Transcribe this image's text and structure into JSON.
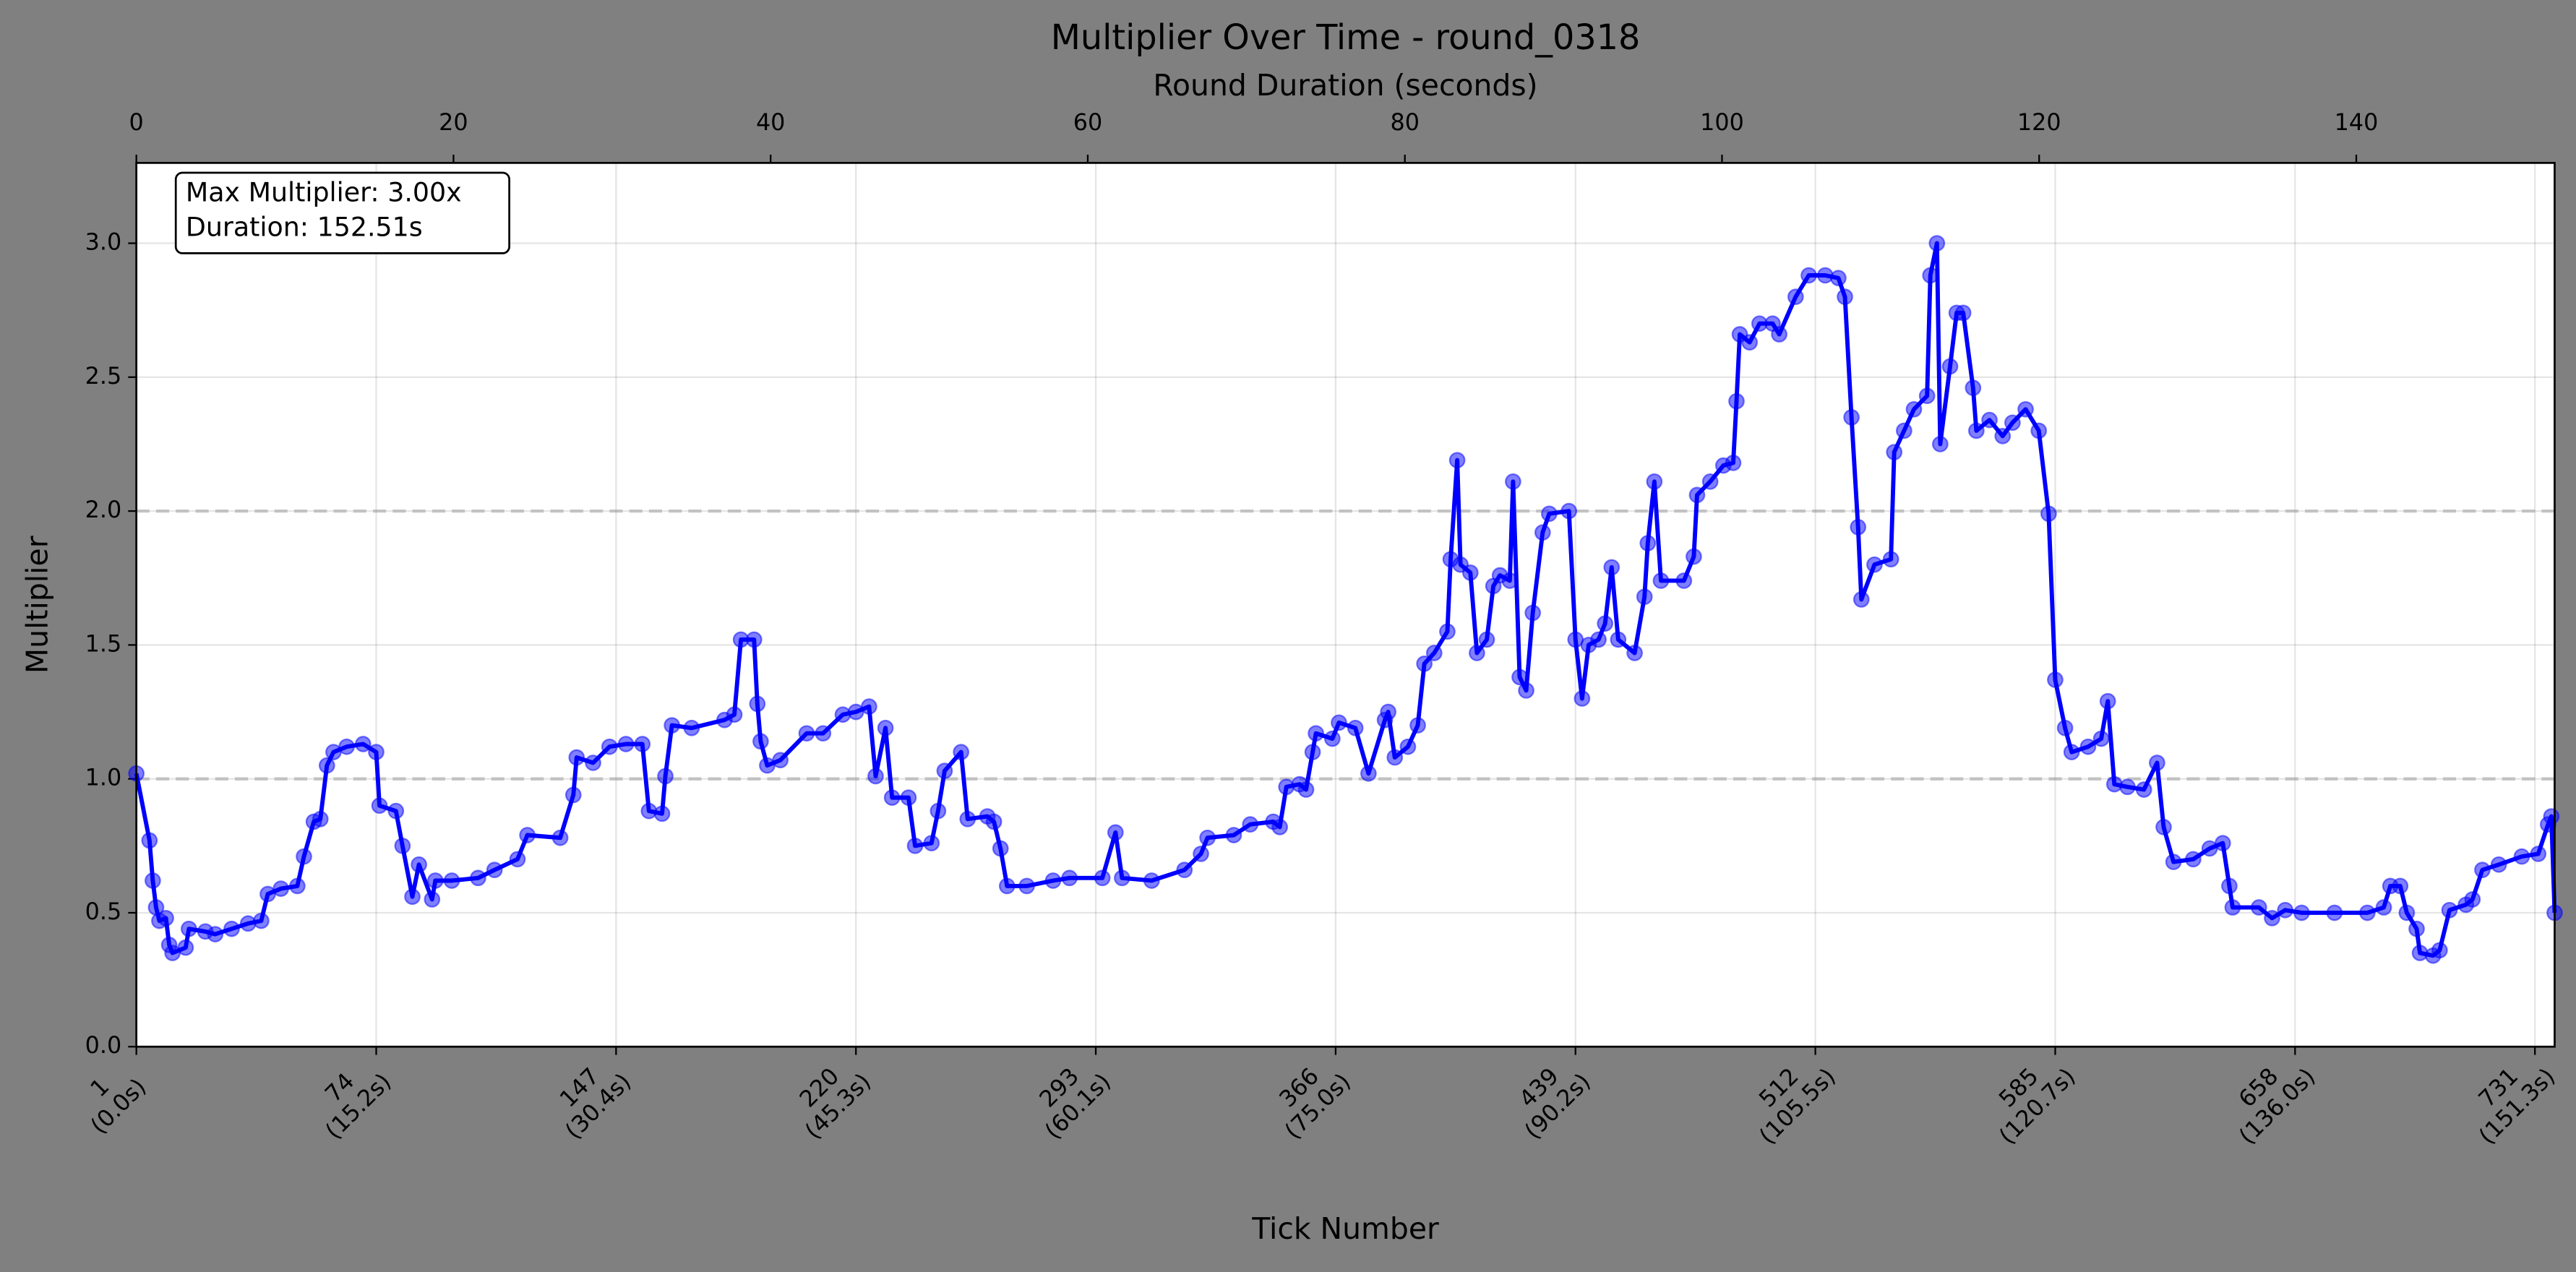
{
  "chart_data": {
    "type": "line",
    "title": "Multiplier Over Time - round_0318",
    "xlabel": "Tick Number",
    "ylabel": "Multiplier",
    "x2label": "Round Duration (seconds)",
    "annotation": [
      "Max Multiplier: 3.00x",
      "Duration: 152.51s"
    ],
    "color": "#0000ff",
    "grid": true,
    "reference_lines": [
      1,
      2
    ],
    "xlim": [
      1,
      737
    ],
    "ylim": [
      0,
      3.3
    ],
    "x2lim": [
      0,
      152.51
    ],
    "x2ticks": [
      0,
      20,
      40,
      60,
      80,
      100,
      120,
      140
    ],
    "yticks": [
      {
        "value": 0,
        "label": "0.0"
      },
      0.5,
      {
        "value": 1,
        "label": "1.0"
      },
      1.5,
      {
        "value": 2,
        "label": "2.0"
      },
      2.5,
      {
        "value": 3,
        "label": "3.0"
      }
    ],
    "xticks": [
      {
        "value": 1,
        "label": "1",
        "time_label": "(0.0s)"
      },
      {
        "value": 74,
        "label": "74",
        "time_label": "(15.2s)"
      },
      {
        "value": 147,
        "label": "147",
        "time_label": "(30.4s)"
      },
      {
        "value": 220,
        "label": "220",
        "time_label": "(45.3s)"
      },
      {
        "value": 293,
        "label": "293",
        "time_label": "(60.1s)"
      },
      {
        "value": 366,
        "label": "366",
        "time_label": "(75.0s)"
      },
      {
        "value": 439,
        "label": "439",
        "time_label": "(90.2s)"
      },
      {
        "value": 512,
        "label": "512",
        "time_label": "(105.5s)"
      },
      {
        "value": 585,
        "label": "585",
        "time_label": "(120.7s)"
      },
      {
        "value": 658,
        "label": "658",
        "time_label": "(136.0s)"
      },
      {
        "value": 731,
        "label": "731",
        "time_label": "(151.3s)"
      }
    ],
    "x": [
      1,
      5,
      6,
      7,
      8,
      10,
      11,
      12,
      16,
      17,
      22,
      25,
      30,
      35,
      39,
      41,
      45,
      50,
      52,
      55,
      57,
      59,
      61,
      65,
      70,
      74,
      75,
      80,
      82,
      85,
      87,
      91,
      92,
      97,
      105,
      110,
      117,
      120,
      130,
      134,
      135,
      140,
      145,
      150,
      155,
      157,
      161,
      162,
      164,
      170,
      180,
      183,
      185,
      189,
      190,
      191,
      193,
      197,
      205,
      210,
      216,
      220,
      224,
      226,
      229,
      231,
      236,
      238,
      243,
      245,
      247,
      252,
      254,
      260,
      262,
      264,
      266,
      272,
      280,
      285,
      295,
      299,
      301,
      310,
      320,
      325,
      327,
      335,
      340,
      347,
      349,
      351,
      355,
      357,
      359,
      360,
      365,
      367,
      372,
      376,
      381,
      382,
      384,
      388,
      391,
      393,
      396,
      400,
      401,
      403,
      404,
      407,
      409,
      412,
      414,
      416,
      419,
      420,
      422,
      424,
      426,
      429,
      431,
      437,
      439,
      441,
      443,
      446,
      448,
      450,
      452,
      457,
      460,
      461,
      463,
      465,
      472,
      475,
      476,
      480,
      484,
      487,
      488,
      489,
      492,
      495,
      499,
      501,
      506,
      510,
      515,
      519,
      521,
      523,
      525,
      526,
      530,
      535,
      536,
      539,
      542,
      546,
      547,
      549,
      550,
      553,
      555,
      557,
      560,
      561,
      565,
      569,
      572,
      576,
      580,
      583,
      585,
      588,
      590,
      595,
      599,
      601,
      603,
      607,
      612,
      616,
      618,
      621,
      627,
      632,
      636,
      638,
      639,
      647,
      651,
      655,
      660,
      670,
      680,
      685,
      687,
      690,
      692,
      695,
      696,
      700,
      702,
      705,
      710,
      712,
      715,
      720,
      727,
      732,
      735,
      736,
      737
    ],
    "values": [
      1.02,
      0.77,
      0.62,
      0.52,
      0.47,
      0.48,
      0.38,
      0.35,
      0.37,
      0.44,
      0.43,
      0.42,
      0.44,
      0.46,
      0.47,
      0.57,
      0.59,
      0.6,
      0.71,
      0.84,
      0.85,
      1.05,
      1.1,
      1.12,
      1.13,
      1.1,
      0.9,
      0.88,
      0.75,
      0.56,
      0.68,
      0.55,
      0.62,
      0.62,
      0.63,
      0.66,
      0.7,
      0.79,
      0.78,
      0.94,
      1.08,
      1.06,
      1.12,
      1.13,
      1.13,
      0.88,
      0.87,
      1.01,
      1.2,
      1.19,
      1.22,
      1.24,
      1.52,
      1.52,
      1.28,
      1.14,
      1.05,
      1.07,
      1.17,
      1.17,
      1.24,
      1.25,
      1.27,
      1.01,
      1.19,
      0.93,
      0.93,
      0.75,
      0.76,
      0.88,
      1.03,
      1.1,
      0.85,
      0.86,
      0.84,
      0.74,
      0.6,
      0.6,
      0.62,
      0.63,
      0.63,
      0.8,
      0.63,
      0.62,
      0.66,
      0.72,
      0.78,
      0.79,
      0.83,
      0.84,
      0.82,
      0.97,
      0.98,
      0.96,
      1.1,
      1.17,
      1.15,
      1.21,
      1.19,
      1.02,
      1.22,
      1.25,
      1.08,
      1.12,
      1.2,
      1.43,
      1.47,
      1.55,
      1.82,
      2.19,
      1.8,
      1.77,
      1.47,
      1.52,
      1.72,
      1.76,
      1.74,
      2.11,
      1.38,
      1.33,
      1.62,
      1.92,
      1.99,
      2.0,
      1.52,
      1.3,
      1.5,
      1.52,
      1.58,
      1.79,
      1.52,
      1.47,
      1.68,
      1.88,
      2.11,
      1.74,
      1.74,
      1.83,
      2.06,
      2.11,
      2.17,
      2.18,
      2.41,
      2.66,
      2.63,
      2.7,
      2.7,
      2.66,
      2.8,
      2.88,
      2.88,
      2.87,
      2.8,
      2.35,
      1.94,
      1.67,
      1.8,
      1.82,
      2.22,
      2.3,
      2.38,
      2.43,
      2.88,
      3.0,
      2.25,
      2.54,
      2.74,
      2.74,
      2.46,
      2.3,
      2.34,
      2.28,
      2.33,
      2.38,
      2.3,
      1.99,
      1.37,
      1.19,
      1.1,
      1.12,
      1.15,
      1.29,
      0.98,
      0.97,
      0.96,
      1.06,
      0.82,
      0.69,
      0.7,
      0.74,
      0.76,
      0.6,
      0.52,
      0.52,
      0.48,
      0.51,
      0.5,
      0.5,
      0.5,
      0.52,
      0.6,
      0.6,
      0.5,
      0.44,
      0.35,
      0.34,
      0.36,
      0.51,
      0.53,
      0.55,
      0.66,
      0.68,
      0.71,
      0.72,
      0.83,
      0.86,
      0.5
    ]
  }
}
